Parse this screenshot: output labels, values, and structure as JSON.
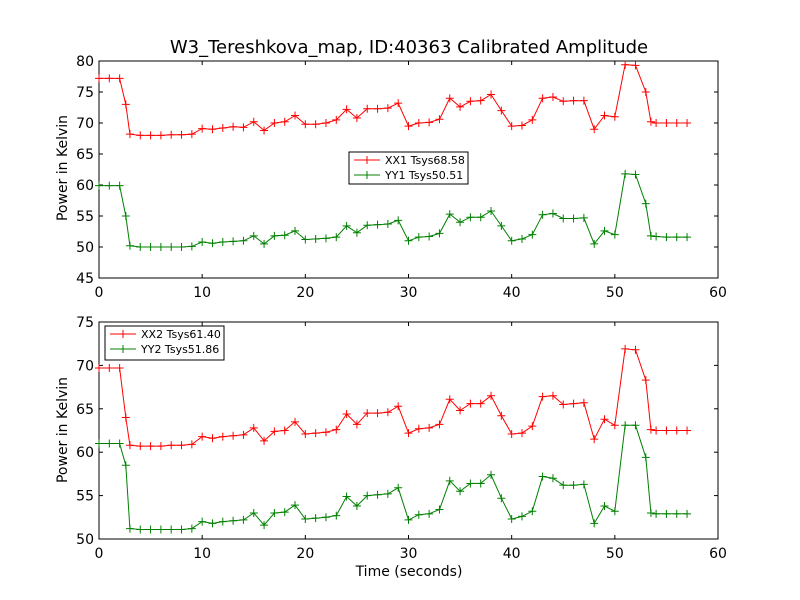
{
  "chart_data": [
    {
      "type": "line",
      "title": "W3_Tereshkova_map, ID:40363 Calibrated Amplitude",
      "xlabel": "",
      "ylabel": "Power in Kelvin",
      "xlim": [
        0,
        60
      ],
      "ylim": [
        45,
        80
      ],
      "xticks": [
        "0",
        "10",
        "20",
        "30",
        "40",
        "50",
        "60"
      ],
      "yticks": [
        "45",
        "50",
        "55",
        "60",
        "65",
        "70",
        "75",
        "80"
      ],
      "grid": false,
      "legend": "center",
      "marker": "+",
      "x": [
        0,
        1,
        2,
        2.6,
        3,
        4,
        5,
        6,
        7,
        8,
        9,
        10,
        11,
        12,
        13,
        14,
        15,
        16,
        17,
        18,
        19,
        20,
        21,
        22,
        23,
        24,
        25,
        26,
        27,
        28,
        29,
        30,
        31,
        32,
        33,
        34,
        35,
        36,
        37,
        38,
        39,
        40,
        41,
        42,
        43,
        44,
        45,
        46,
        47,
        48,
        49,
        50,
        51,
        52,
        53,
        53.5,
        54,
        55,
        56,
        57
      ],
      "series": [
        {
          "name": "XX1 Tsys68.58",
          "color": "#ff0000",
          "values": [
            77.2,
            77.2,
            77.2,
            73.0,
            68.2,
            68.0,
            68.0,
            68.0,
            68.1,
            68.1,
            68.2,
            69.1,
            69.0,
            69.2,
            69.4,
            69.3,
            70.2,
            68.8,
            70.0,
            70.2,
            71.2,
            69.8,
            69.8,
            70.0,
            70.5,
            72.2,
            70.8,
            72.3,
            72.3,
            72.4,
            73.2,
            69.5,
            70.0,
            70.1,
            70.6,
            74.0,
            72.6,
            73.5,
            73.6,
            74.6,
            72.0,
            69.5,
            69.6,
            70.5,
            74.0,
            74.2,
            73.5,
            73.6,
            73.6,
            69.0,
            71.2,
            71.0,
            79.4,
            79.3,
            75.0,
            70.2,
            70.0,
            70.0,
            70.0,
            70.0
          ]
        },
        {
          "name": "YY1 Tsys50.51",
          "color": "#008000",
          "values": [
            59.9,
            59.9,
            59.9,
            55.0,
            50.2,
            50.0,
            50.0,
            50.0,
            50.0,
            50.0,
            50.1,
            50.8,
            50.6,
            50.8,
            50.9,
            51.0,
            51.8,
            50.5,
            51.8,
            51.9,
            52.6,
            51.2,
            51.3,
            51.4,
            51.6,
            53.4,
            52.3,
            53.5,
            53.6,
            53.7,
            54.3,
            51.0,
            51.6,
            51.7,
            52.2,
            55.3,
            54.0,
            54.8,
            54.8,
            55.8,
            53.4,
            51.0,
            51.3,
            52.0,
            55.2,
            55.4,
            54.6,
            54.6,
            54.7,
            50.5,
            52.6,
            52.0,
            61.8,
            61.7,
            57.0,
            51.8,
            51.7,
            51.6,
            51.6,
            51.6
          ]
        }
      ]
    },
    {
      "type": "line",
      "title": "",
      "xlabel": "Time (seconds)",
      "ylabel": "Power in Kelvin",
      "xlim": [
        0,
        60
      ],
      "ylim": [
        50,
        75
      ],
      "xticks": [
        "0",
        "10",
        "20",
        "30",
        "40",
        "50",
        "60"
      ],
      "yticks": [
        "50",
        "55",
        "60",
        "65",
        "70",
        "75"
      ],
      "grid": false,
      "legend": "top-left",
      "marker": "+",
      "x": [
        0,
        1,
        2,
        2.6,
        3,
        4,
        5,
        6,
        7,
        8,
        9,
        10,
        11,
        12,
        13,
        14,
        15,
        16,
        17,
        18,
        19,
        20,
        21,
        22,
        23,
        24,
        25,
        26,
        27,
        28,
        29,
        30,
        31,
        32,
        33,
        34,
        35,
        36,
        37,
        38,
        39,
        40,
        41,
        42,
        43,
        44,
        45,
        46,
        47,
        48,
        49,
        50,
        51,
        52,
        53,
        53.5,
        54,
        55,
        56,
        57
      ],
      "series": [
        {
          "name": "XX2 Tsys61.40",
          "color": "#ff0000",
          "values": [
            69.7,
            69.7,
            69.7,
            64.0,
            60.8,
            60.7,
            60.7,
            60.7,
            60.8,
            60.8,
            60.9,
            61.8,
            61.6,
            61.8,
            61.9,
            62.0,
            62.8,
            61.3,
            62.4,
            62.5,
            63.5,
            62.1,
            62.2,
            62.3,
            62.6,
            64.4,
            63.2,
            64.5,
            64.5,
            64.6,
            65.3,
            62.2,
            62.7,
            62.8,
            63.2,
            66.1,
            64.8,
            65.6,
            65.6,
            66.5,
            64.2,
            62.1,
            62.2,
            63.0,
            66.4,
            66.5,
            65.5,
            65.6,
            65.7,
            61.5,
            63.8,
            63.1,
            71.9,
            71.8,
            68.3,
            62.6,
            62.5,
            62.5,
            62.5,
            62.5
          ]
        },
        {
          "name": "YY2 Tsys51.86",
          "color": "#008000",
          "values": [
            61.0,
            61.0,
            61.0,
            58.5,
            51.2,
            51.1,
            51.1,
            51.1,
            51.1,
            51.1,
            51.2,
            52.0,
            51.8,
            52.0,
            52.1,
            52.2,
            53.0,
            51.6,
            53.0,
            53.1,
            53.9,
            52.3,
            52.4,
            52.5,
            52.7,
            54.9,
            53.8,
            55.0,
            55.1,
            55.2,
            55.9,
            52.2,
            52.8,
            52.9,
            53.4,
            56.7,
            55.5,
            56.4,
            56.4,
            57.4,
            54.7,
            52.3,
            52.6,
            53.2,
            57.2,
            57.0,
            56.2,
            56.2,
            56.3,
            51.8,
            53.8,
            53.2,
            63.1,
            63.1,
            59.4,
            53.0,
            52.9,
            52.9,
            52.9,
            52.9
          ]
        }
      ]
    }
  ]
}
